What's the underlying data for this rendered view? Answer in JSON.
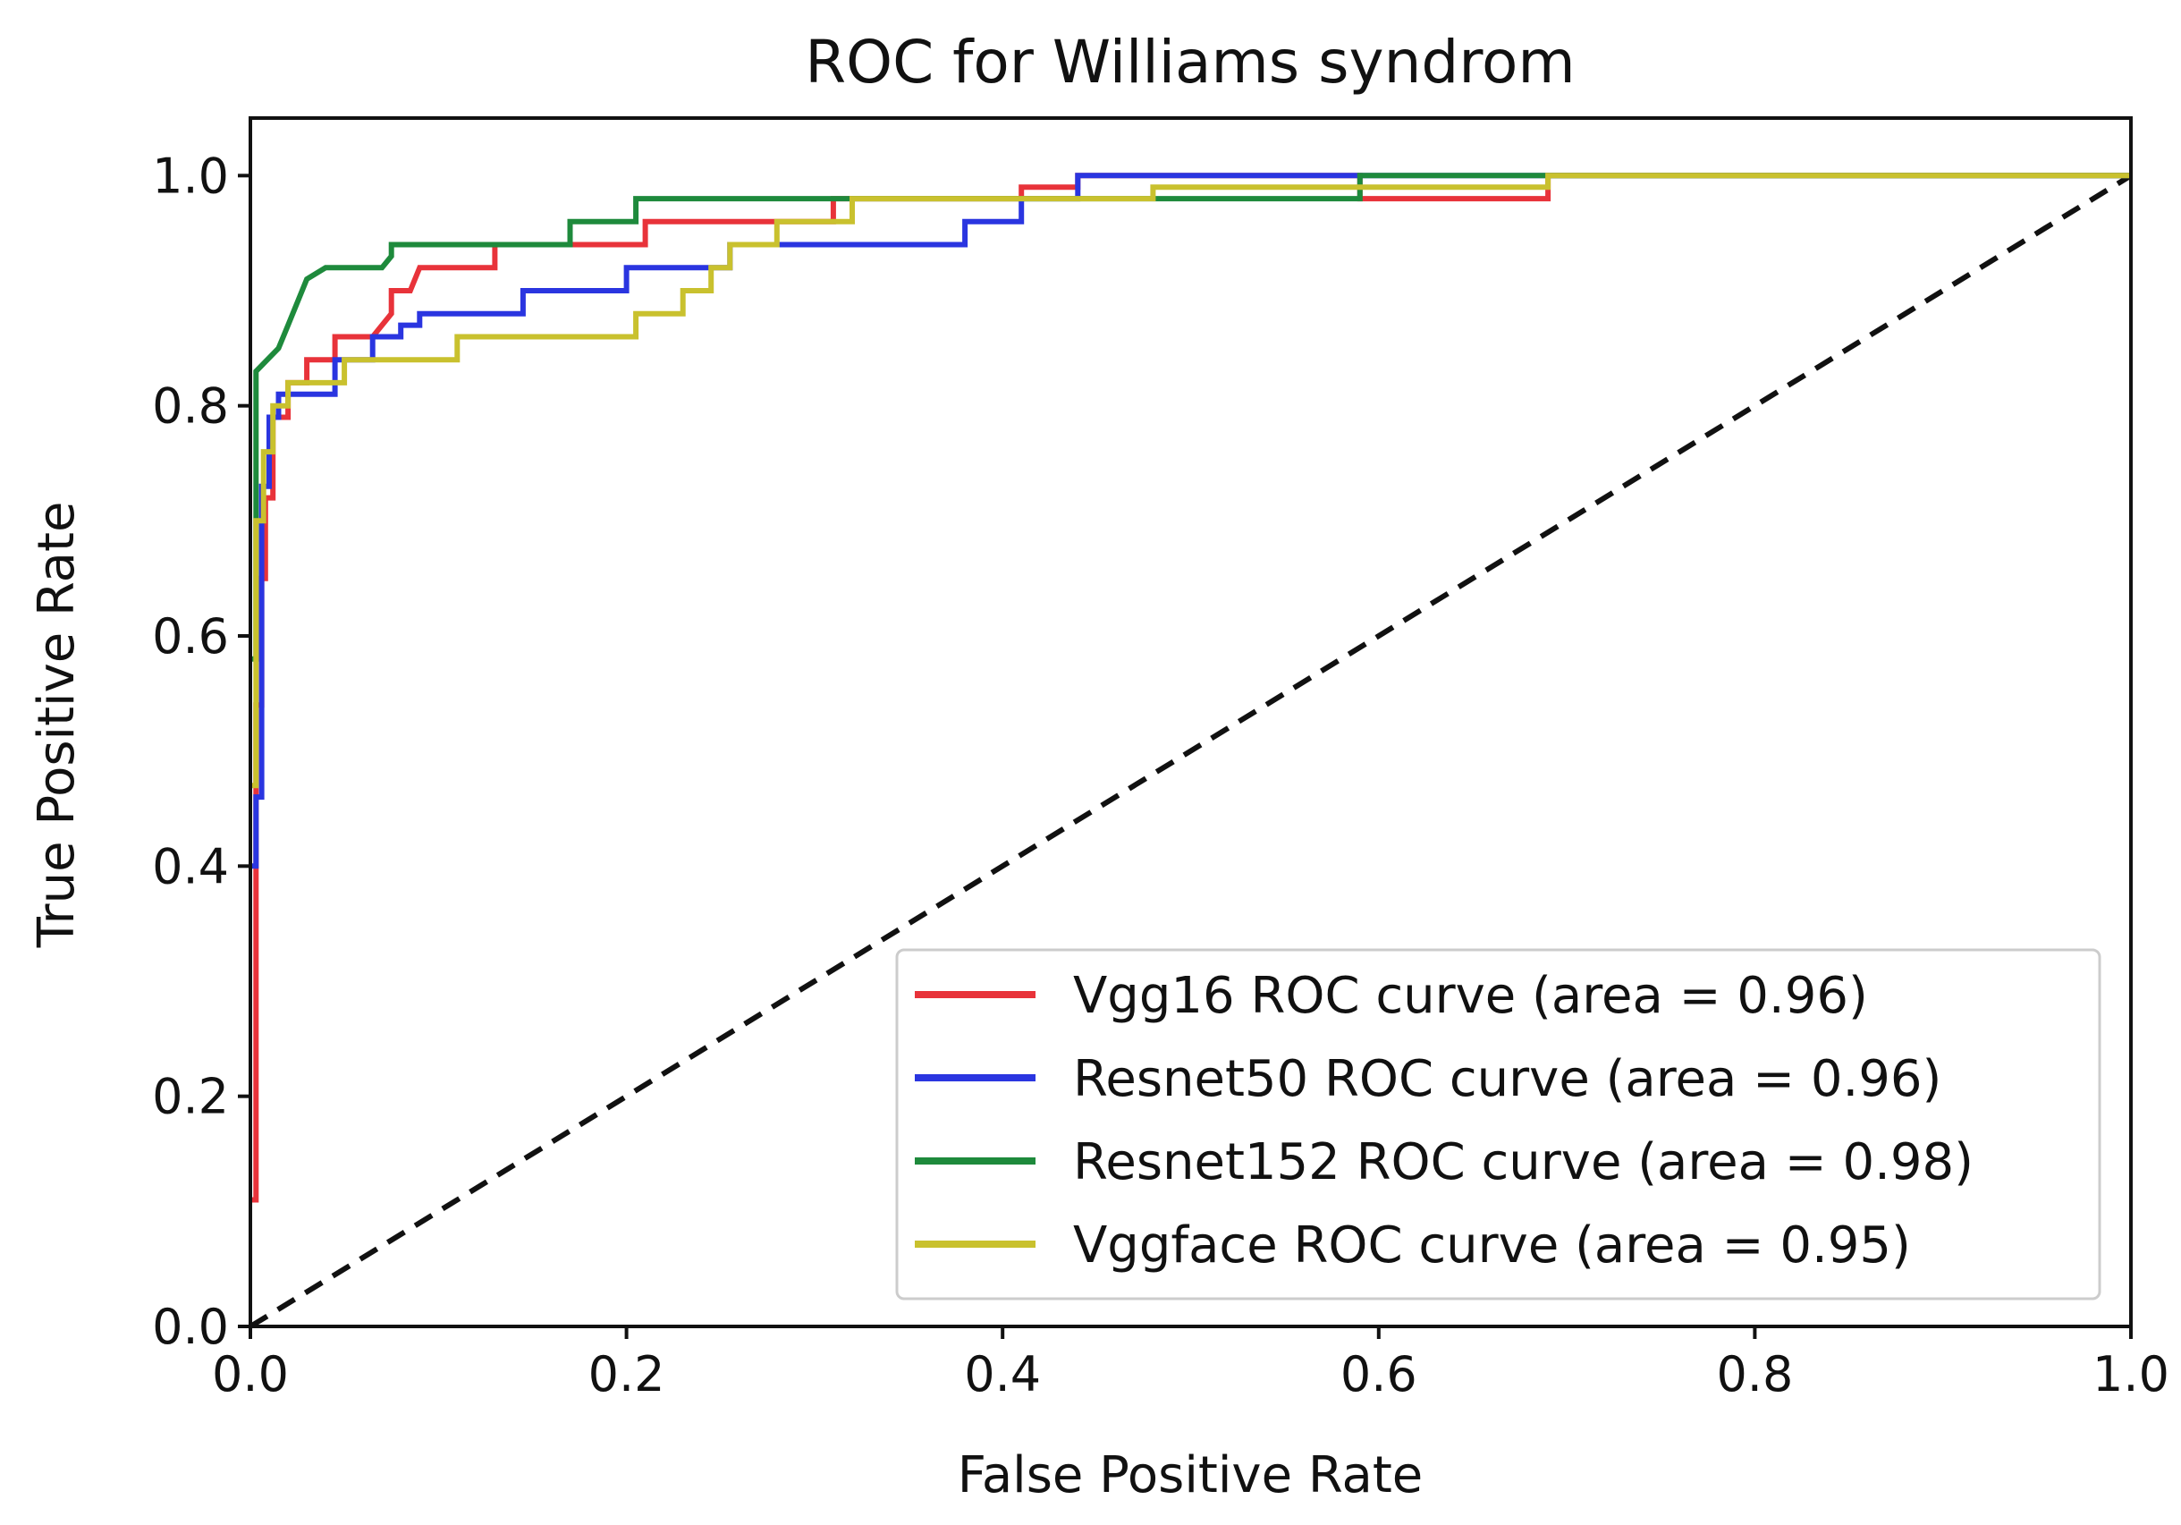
{
  "chart_data": {
    "type": "line",
    "title": "ROC for Williams syndrom",
    "xlabel": "False Positive Rate",
    "ylabel": "True Positive Rate",
    "xlim": [
      0.0,
      1.0
    ],
    "ylim": [
      0.0,
      1.05
    ],
    "xticks": [
      "0.0",
      "0.2",
      "0.4",
      "0.6",
      "0.8",
      "1.0"
    ],
    "yticks": [
      "0.0",
      "0.2",
      "0.4",
      "0.6",
      "0.8",
      "1.0"
    ],
    "grid": false,
    "legend_position": "lower-right",
    "series": [
      {
        "name": "Vgg16 ROC curve (area = 0.96)",
        "color": "#e8333a",
        "x": [
          0,
          0.003,
          0.003,
          0.006,
          0.006,
          0.008,
          0.008,
          0.012,
          0.012,
          0.02,
          0.02,
          0.03,
          0.03,
          0.045,
          0.045,
          0.065,
          0.075,
          0.075,
          0.085,
          0.09,
          0.09,
          0.13,
          0.13,
          0.21,
          0.21,
          0.31,
          0.31,
          0.41,
          0.41,
          0.44,
          0.44,
          0.59,
          0.59,
          0.69,
          0.69,
          1.0
        ],
        "y": [
          0.11,
          0.11,
          0.54,
          0.54,
          0.65,
          0.65,
          0.72,
          0.72,
          0.79,
          0.79,
          0.82,
          0.82,
          0.84,
          0.84,
          0.86,
          0.86,
          0.88,
          0.9,
          0.9,
          0.92,
          0.92,
          0.92,
          0.94,
          0.94,
          0.96,
          0.96,
          0.98,
          0.98,
          0.99,
          0.99,
          1.0,
          1.0,
          0.98,
          0.98,
          1.0,
          1.0
        ]
      },
      {
        "name": "Resnet50 ROC curve (area = 0.96)",
        "color": "#2a35e0",
        "x": [
          0,
          0.003,
          0.003,
          0.006,
          0.006,
          0.01,
          0.01,
          0.015,
          0.015,
          0.045,
          0.045,
          0.065,
          0.065,
          0.08,
          0.08,
          0.09,
          0.09,
          0.145,
          0.145,
          0.2,
          0.2,
          0.255,
          0.255,
          0.38,
          0.38,
          0.41,
          0.41,
          0.44,
          0.44,
          0.59,
          0.59,
          1.0
        ],
        "y": [
          0.4,
          0.4,
          0.46,
          0.46,
          0.73,
          0.73,
          0.79,
          0.79,
          0.81,
          0.81,
          0.84,
          0.84,
          0.86,
          0.86,
          0.87,
          0.87,
          0.88,
          0.88,
          0.9,
          0.9,
          0.92,
          0.92,
          0.94,
          0.94,
          0.96,
          0.96,
          0.98,
          0.98,
          1.0,
          1.0,
          1.0,
          1.0
        ]
      },
      {
        "name": "Resnet152 ROC curve (area = 0.98)",
        "color": "#1e8a3c",
        "x": [
          0,
          0.003,
          0.003,
          0.015,
          0.02,
          0.025,
          0.03,
          0.04,
          0.04,
          0.07,
          0.075,
          0.075,
          0.17,
          0.17,
          0.205,
          0.205,
          0.41,
          0.41,
          0.48,
          0.48,
          0.59,
          0.59,
          0.69,
          0.69,
          1.0
        ],
        "y": [
          0.58,
          0.58,
          0.83,
          0.85,
          0.87,
          0.89,
          0.91,
          0.92,
          0.92,
          0.92,
          0.93,
          0.94,
          0.94,
          0.96,
          0.96,
          0.98,
          0.98,
          0.98,
          0.98,
          0.98,
          0.98,
          1.0,
          1.0,
          1.0,
          1.0
        ]
      },
      {
        "name": "Vggface ROC curve (area = 0.95)",
        "color": "#c9c12e",
        "x": [
          0,
          0.003,
          0.003,
          0.007,
          0.007,
          0.012,
          0.012,
          0.02,
          0.02,
          0.05,
          0.05,
          0.11,
          0.11,
          0.205,
          0.205,
          0.23,
          0.23,
          0.245,
          0.245,
          0.255,
          0.255,
          0.28,
          0.28,
          0.32,
          0.32,
          0.48,
          0.48,
          0.69,
          0.69,
          1.0
        ],
        "y": [
          0.47,
          0.47,
          0.7,
          0.7,
          0.76,
          0.76,
          0.8,
          0.8,
          0.82,
          0.82,
          0.84,
          0.84,
          0.86,
          0.86,
          0.88,
          0.88,
          0.9,
          0.9,
          0.92,
          0.92,
          0.94,
          0.94,
          0.96,
          0.96,
          0.98,
          0.98,
          0.99,
          0.99,
          1.0,
          1.0
        ]
      }
    ],
    "diagonal": {
      "style": "dashed",
      "color": "#111111",
      "x": [
        0,
        1
      ],
      "y": [
        0,
        1
      ]
    }
  }
}
